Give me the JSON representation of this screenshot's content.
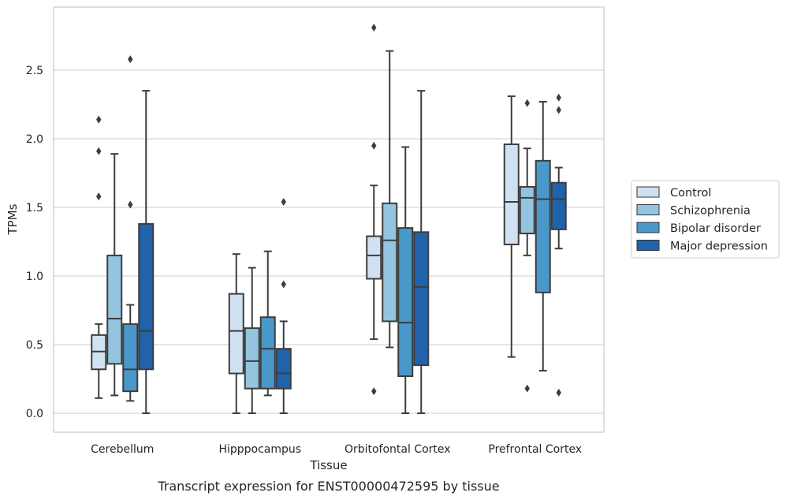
{
  "chart_data": {
    "type": "box",
    "xlabel": "Tissue",
    "ylabel": "TPMs",
    "caption": "Transcript expression for ENST00000472595 by tissue",
    "ylim": [
      -0.13,
      2.95
    ],
    "yticks": [
      "0.0",
      "0.5",
      "1.0",
      "1.5",
      "2.0",
      "2.5"
    ],
    "grid": "horizontal",
    "legend_position": "right",
    "categories": [
      "Cerebellum",
      "Hipppocampus",
      "Orbitofontal Cortex",
      "Prefrontal Cortex"
    ],
    "series": [
      {
        "name": "Control",
        "color": "#d0e1f2",
        "boxes": [
          {
            "min": 0.11,
            "q1": 0.32,
            "median": 0.45,
            "q3": 0.57,
            "max": 0.65,
            "outliers": [
              1.58,
              1.91,
              2.14
            ]
          },
          {
            "min": 0.0,
            "q1": 0.29,
            "median": 0.6,
            "q3": 0.87,
            "max": 1.16,
            "outliers": []
          },
          {
            "min": 0.54,
            "q1": 0.98,
            "median": 1.15,
            "q3": 1.29,
            "max": 1.66,
            "outliers": [
              0.16,
              1.95,
              2.81
            ]
          },
          {
            "min": 0.41,
            "q1": 1.23,
            "median": 1.54,
            "q3": 1.96,
            "max": 2.31,
            "outliers": []
          }
        ]
      },
      {
        "name": "Schizophrenia",
        "color": "#94c4df",
        "boxes": [
          {
            "min": 0.13,
            "q1": 0.36,
            "median": 0.69,
            "q3": 1.15,
            "max": 1.89,
            "outliers": []
          },
          {
            "min": 0.0,
            "q1": 0.18,
            "median": 0.38,
            "q3": 0.62,
            "max": 1.06,
            "outliers": []
          },
          {
            "min": 0.48,
            "q1": 0.67,
            "median": 1.26,
            "q3": 1.53,
            "max": 2.64,
            "outliers": []
          },
          {
            "min": 1.15,
            "q1": 1.31,
            "median": 1.57,
            "q3": 1.65,
            "max": 1.93,
            "outliers": [
              0.18,
              2.26
            ]
          }
        ]
      },
      {
        "name": "Bipolar disorder",
        "color": "#4a98c9",
        "boxes": [
          {
            "min": 0.09,
            "q1": 0.16,
            "median": 0.32,
            "q3": 0.65,
            "max": 0.79,
            "outliers": [
              1.52,
              2.58
            ]
          },
          {
            "min": 0.13,
            "q1": 0.18,
            "median": 0.47,
            "q3": 0.7,
            "max": 1.18,
            "outliers": []
          },
          {
            "min": 0.0,
            "q1": 0.27,
            "median": 0.66,
            "q3": 1.35,
            "max": 1.94,
            "outliers": []
          },
          {
            "min": 0.31,
            "q1": 0.88,
            "median": 1.56,
            "q3": 1.84,
            "max": 2.27,
            "outliers": []
          }
        ]
      },
      {
        "name": "Major depression",
        "color": "#2163aa",
        "boxes": [
          {
            "min": 0.0,
            "q1": 0.32,
            "median": 0.6,
            "q3": 1.38,
            "max": 2.35,
            "outliers": []
          },
          {
            "min": 0.0,
            "q1": 0.18,
            "median": 0.29,
            "q3": 0.47,
            "max": 0.67,
            "outliers": [
              0.94,
              1.54
            ]
          },
          {
            "min": 0.0,
            "q1": 0.35,
            "median": 0.92,
            "q3": 1.32,
            "max": 2.35,
            "outliers": []
          },
          {
            "min": 1.2,
            "q1": 1.34,
            "median": 1.56,
            "q3": 1.68,
            "max": 1.79,
            "outliers": [
              0.15,
              2.21,
              2.3
            ]
          }
        ]
      }
    ]
  }
}
